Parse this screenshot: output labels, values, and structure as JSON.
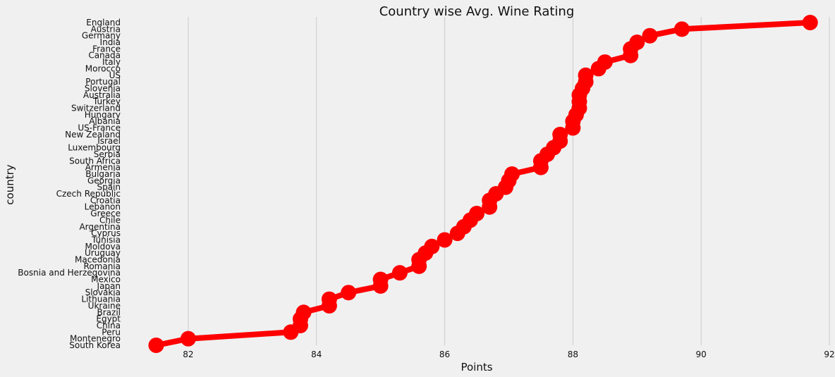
{
  "chart_data": {
    "type": "line",
    "title": "Country wise Avg. Wine Rating",
    "xlabel": "Points",
    "ylabel": "country",
    "xlim": [
      81.0,
      92.0
    ],
    "xticks": [
      82,
      84,
      86,
      88,
      90,
      92
    ],
    "grid": "vertical",
    "line_color": "#ff0000",
    "marker": "circle",
    "background": "#f0f0f0",
    "categories": [
      "England",
      "Austria",
      "Germany",
      "India",
      "France",
      "Canada",
      "Italy",
      "Morocco",
      "US",
      "Portugal",
      "Slovenia",
      "Australia",
      "Turkey",
      "Switzerland",
      "Hungary",
      "Albania",
      "US-France",
      "New Zealand",
      "Israel",
      "Luxembourg",
      "Serbia",
      "South Africa",
      "Armenia",
      "Bulgaria",
      "Georgia",
      "Spain",
      "Czech Republic",
      "Croatia",
      "Lebanon",
      "Greece",
      "Chile",
      "Argentina",
      "Cyprus",
      "Tunisia",
      "Moldova",
      "Uruguay",
      "Macedonia",
      "Romania",
      "Bosnia and Herzegovina",
      "Mexico",
      "Japan",
      "Slovakia",
      "Lithuania",
      "Ukraine",
      "Brazil",
      "Egypt",
      "China",
      "Peru",
      "Montenegro",
      "South Korea"
    ],
    "values": [
      91.7,
      89.7,
      89.2,
      89.0,
      88.9,
      88.9,
      88.5,
      88.4,
      88.2,
      88.2,
      88.15,
      88.1,
      88.1,
      88.1,
      88.05,
      88.0,
      88.0,
      87.8,
      87.8,
      87.7,
      87.6,
      87.5,
      87.5,
      87.05,
      87.0,
      86.95,
      86.8,
      86.7,
      86.7,
      86.5,
      86.4,
      86.3,
      86.2,
      86.0,
      85.8,
      85.7,
      85.6,
      85.6,
      85.3,
      85.0,
      85.0,
      84.5,
      84.2,
      84.2,
      83.8,
      83.75,
      83.75,
      83.6,
      82.0,
      81.5
    ]
  }
}
